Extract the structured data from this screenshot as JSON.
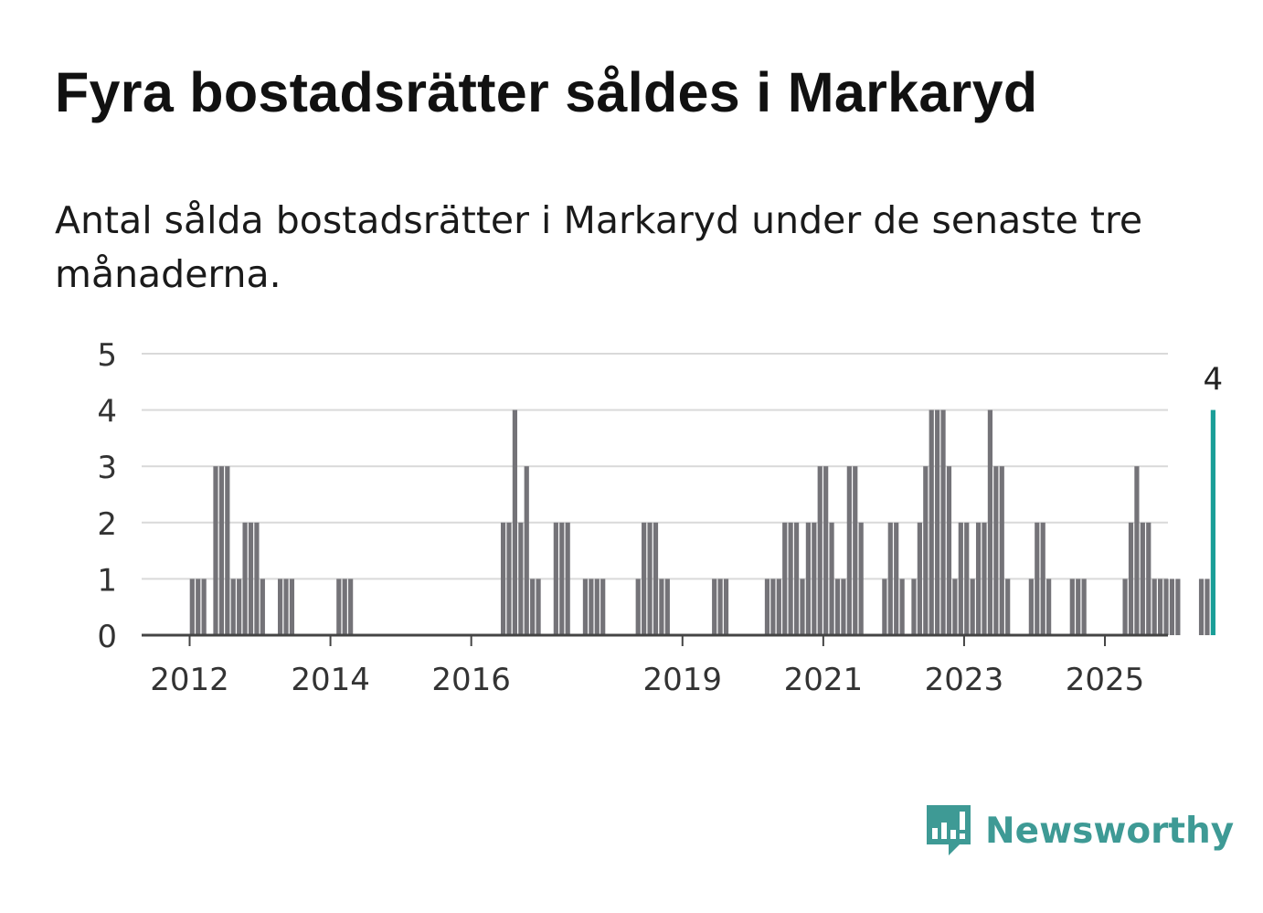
{
  "title": "Fyra bostadsrätter såldes i Markaryd",
  "subtitle": "Antal sålda bostadsrätter i Markaryd under de senaste tre månaderna.",
  "brand": {
    "name": "Newsworthy",
    "color": "#3e9a95",
    "icon": "bar-chart-speech-bubble-icon"
  },
  "chart_data": {
    "type": "bar",
    "title": "",
    "xlabel": "",
    "ylabel": "",
    "ylim": [
      0,
      5
    ],
    "yticks": [
      0,
      1,
      2,
      3,
      4,
      5
    ],
    "xticks": [
      "2012",
      "2014",
      "2016",
      "2019",
      "2021",
      "2023",
      "2025"
    ],
    "grid": true,
    "bar_color": "#747378",
    "highlight_color": "#1a9e98",
    "highlight_label": "4",
    "start_period": "2012-01",
    "period": "month",
    "values": [
      1,
      1,
      1,
      0,
      3,
      3,
      3,
      1,
      1,
      2,
      2,
      2,
      1,
      0,
      0,
      1,
      1,
      1,
      0,
      0,
      0,
      0,
      0,
      0,
      0,
      1,
      1,
      1,
      0,
      0,
      0,
      0,
      0,
      0,
      0,
      0,
      0,
      0,
      0,
      0,
      0,
      0,
      0,
      0,
      0,
      0,
      0,
      0,
      0,
      0,
      0,
      0,
      0,
      2,
      2,
      4,
      2,
      3,
      1,
      1,
      0,
      0,
      2,
      2,
      2,
      0,
      0,
      1,
      1,
      1,
      1,
      0,
      0,
      0,
      0,
      0,
      1,
      2,
      2,
      2,
      1,
      1,
      0,
      0,
      0,
      0,
      0,
      0,
      0,
      1,
      1,
      1,
      0,
      0,
      0,
      0,
      0,
      0,
      1,
      1,
      1,
      2,
      2,
      2,
      1,
      2,
      2,
      3,
      3,
      2,
      1,
      1,
      3,
      3,
      2,
      0,
      0,
      0,
      1,
      2,
      2,
      1,
      0,
      1,
      2,
      3,
      4,
      4,
      4,
      3,
      1,
      2,
      2,
      1,
      2,
      2,
      4,
      3,
      3,
      1,
      0,
      0,
      0,
      1,
      2,
      2,
      1,
      0,
      0,
      0,
      1,
      1,
      1,
      0,
      0,
      0,
      0,
      0,
      0,
      1,
      2,
      3,
      2,
      2,
      1,
      1,
      1,
      1,
      1,
      0,
      0,
      0,
      1,
      1,
      4
    ]
  }
}
